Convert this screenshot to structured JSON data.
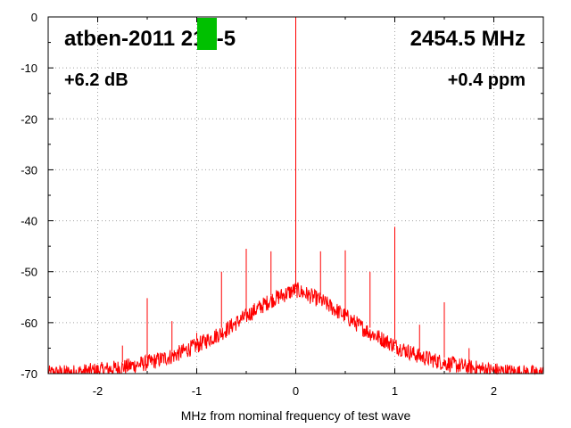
{
  "chart_data": {
    "type": "line",
    "title": "",
    "xlabel": "MHz from nominal frequency of test wave",
    "ylabel": "",
    "xlim": [
      -2.5,
      2.5
    ],
    "ylim": [
      -70,
      0
    ],
    "x_ticks": [
      -2,
      -1,
      0,
      1,
      2
    ],
    "y_ticks": [
      0,
      -10,
      -20,
      -30,
      -40,
      -50,
      -60,
      -70
    ],
    "grid": true,
    "line_color": "#ff0000",
    "annotations": {
      "device": "atben-2011 219-5",
      "frequency": "2454.5 MHz",
      "gain": "+6.2 dB",
      "offset": "+0.4 ppm",
      "marker_color": "#00c000"
    },
    "series": [
      {
        "envelope": {
          "x": [
            -2.5,
            -2.25,
            -2.0,
            -1.75,
            -1.5,
            -1.25,
            -1.0,
            -0.75,
            -0.5,
            -0.25,
            0.0,
            0.25,
            0.5,
            0.75,
            1.0,
            1.25,
            1.5,
            1.75,
            2.0,
            2.25,
            2.5
          ],
          "y": [
            -70.0,
            -69.8,
            -69.4,
            -68.8,
            -67.9,
            -66.6,
            -64.5,
            -62.0,
            -58.7,
            -55.6,
            -53.5,
            -55.6,
            -58.7,
            -62.0,
            -64.5,
            -66.6,
            -67.9,
            -68.8,
            -69.4,
            -69.8,
            -70.0
          ]
        },
        "spikes": [
          {
            "x": 0.0,
            "y": 0
          },
          {
            "x": -1.75,
            "y": -64.5
          },
          {
            "x": -1.5,
            "y": -55.2
          },
          {
            "x": -1.25,
            "y": -59.7
          },
          {
            "x": -1.0,
            "y": -62.0
          },
          {
            "x": -0.75,
            "y": -50.0
          },
          {
            "x": -0.5,
            "y": -45.5
          },
          {
            "x": -0.25,
            "y": -46.0
          },
          {
            "x": 0.25,
            "y": -46.0
          },
          {
            "x": 0.5,
            "y": -45.8
          },
          {
            "x": 0.75,
            "y": -50.0
          },
          {
            "x": 1.0,
            "y": -41.2
          },
          {
            "x": 1.25,
            "y": -60.4
          },
          {
            "x": 1.5,
            "y": -56.0
          },
          {
            "x": 1.75,
            "y": -65.0
          }
        ]
      }
    ]
  }
}
